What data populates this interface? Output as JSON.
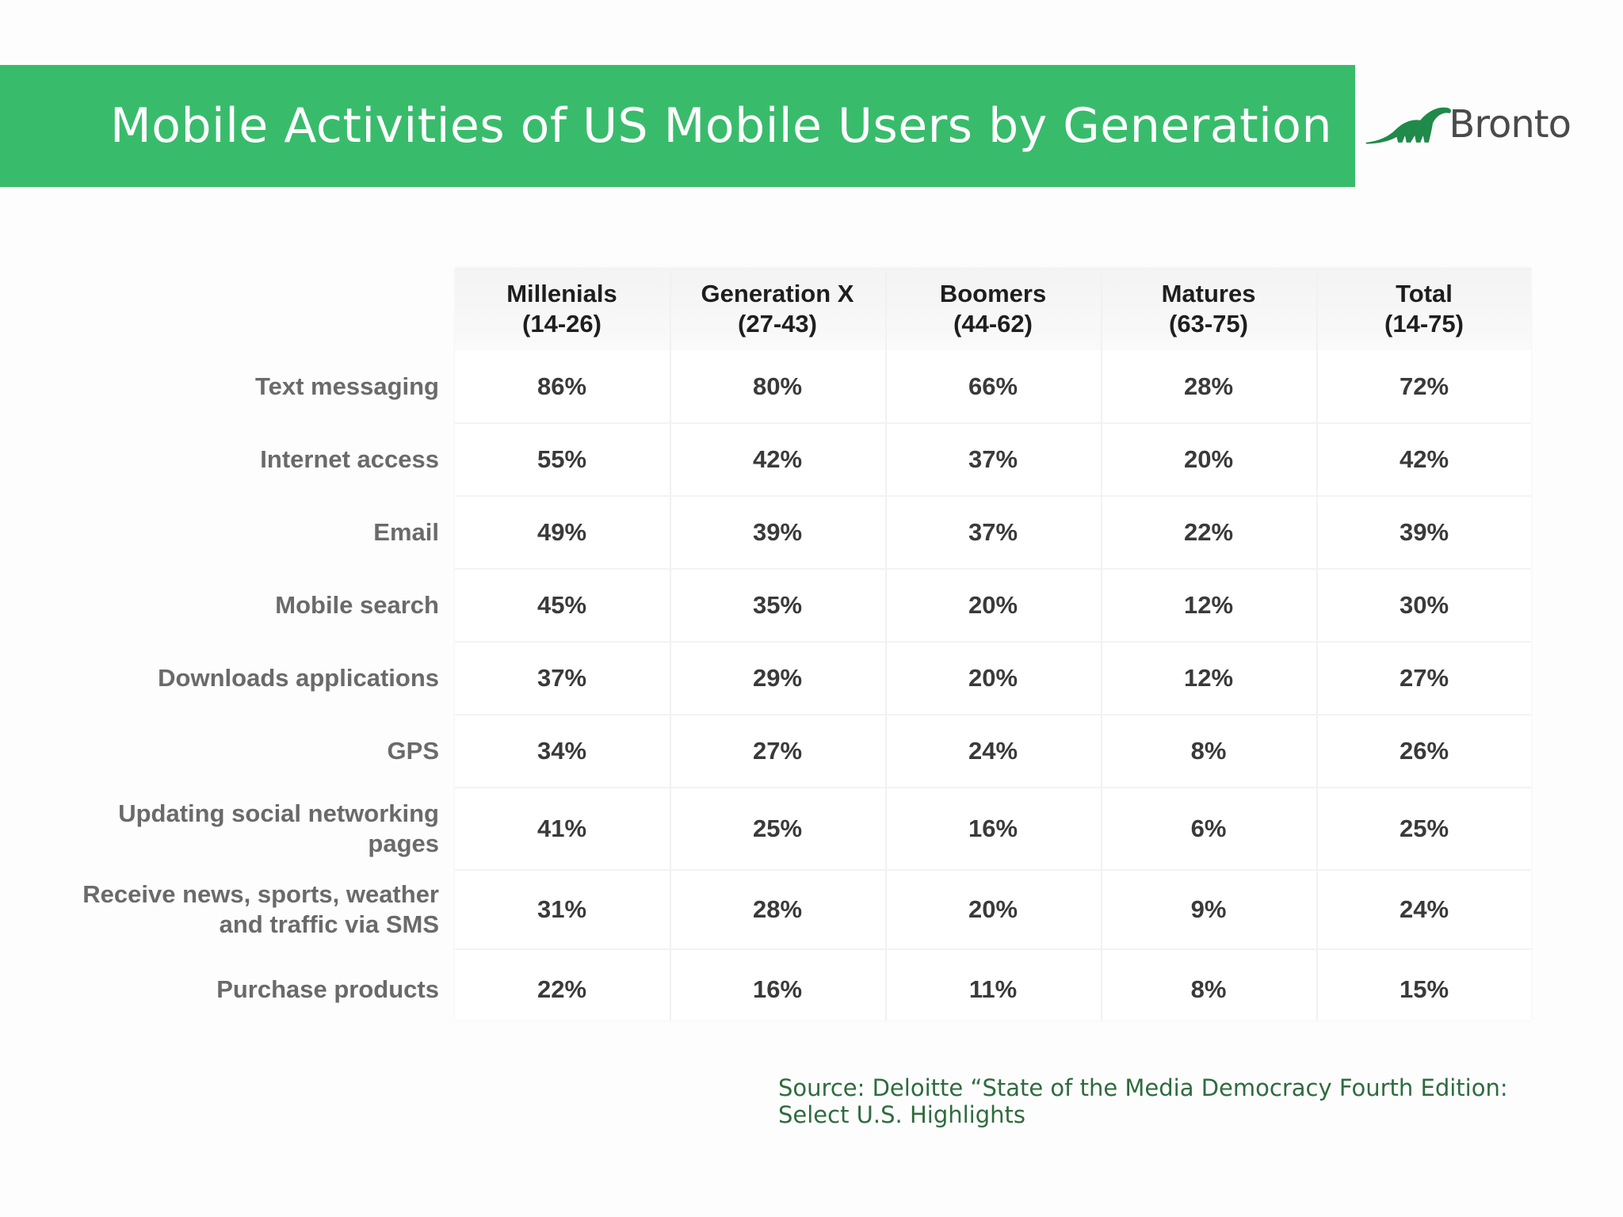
{
  "header": {
    "title": "Mobile Activities of US Mobile Users by Generation",
    "banner_color": "#38bc6b"
  },
  "logo": {
    "text": "Bronto",
    "icon": "dinosaur-icon",
    "icon_color": "#1f8a4a"
  },
  "chart_data": {
    "type": "table",
    "columns": [
      {
        "name": "Millenials",
        "range": "(14-26)"
      },
      {
        "name": "Generation X",
        "range": "(27-43)"
      },
      {
        "name": "Boomers",
        "range": "(44-62)"
      },
      {
        "name": "Matures",
        "range": "(63-75)"
      },
      {
        "name": "Total",
        "range": "(14-75)"
      }
    ],
    "rows": [
      {
        "label": [
          "Text messaging"
        ],
        "values": [
          "86%",
          "80%",
          "66%",
          "28%",
          "72%"
        ]
      },
      {
        "label": [
          "Internet access"
        ],
        "values": [
          "55%",
          "42%",
          "37%",
          "20%",
          "42%"
        ]
      },
      {
        "label": [
          "Email"
        ],
        "values": [
          "49%",
          "39%",
          "37%",
          "22%",
          "39%"
        ]
      },
      {
        "label": [
          "Mobile search"
        ],
        "values": [
          "45%",
          "35%",
          "20%",
          "12%",
          "30%"
        ]
      },
      {
        "label": [
          "Downloads applications"
        ],
        "values": [
          "37%",
          "29%",
          "20%",
          "12%",
          "27%"
        ]
      },
      {
        "label": [
          "GPS"
        ],
        "values": [
          "34%",
          "27%",
          "24%",
          "8%",
          "26%"
        ]
      },
      {
        "label": [
          "Updating social networking",
          "pages"
        ],
        "values": [
          "41%",
          "25%",
          "16%",
          "6%",
          "25%"
        ]
      },
      {
        "label": [
          "Receive news, sports, weather",
          "and traffic via SMS"
        ],
        "values": [
          "31%",
          "28%",
          "20%",
          "9%",
          "24%"
        ]
      },
      {
        "label": [
          "Purchase products"
        ],
        "values": [
          "22%",
          "16%",
          "11%",
          "8%",
          "15%"
        ]
      }
    ]
  },
  "source": {
    "line1": "Source: Deloitte “State of the Media Democracy Fourth Edition:",
    "line2": "Select U.S. Highlights"
  }
}
